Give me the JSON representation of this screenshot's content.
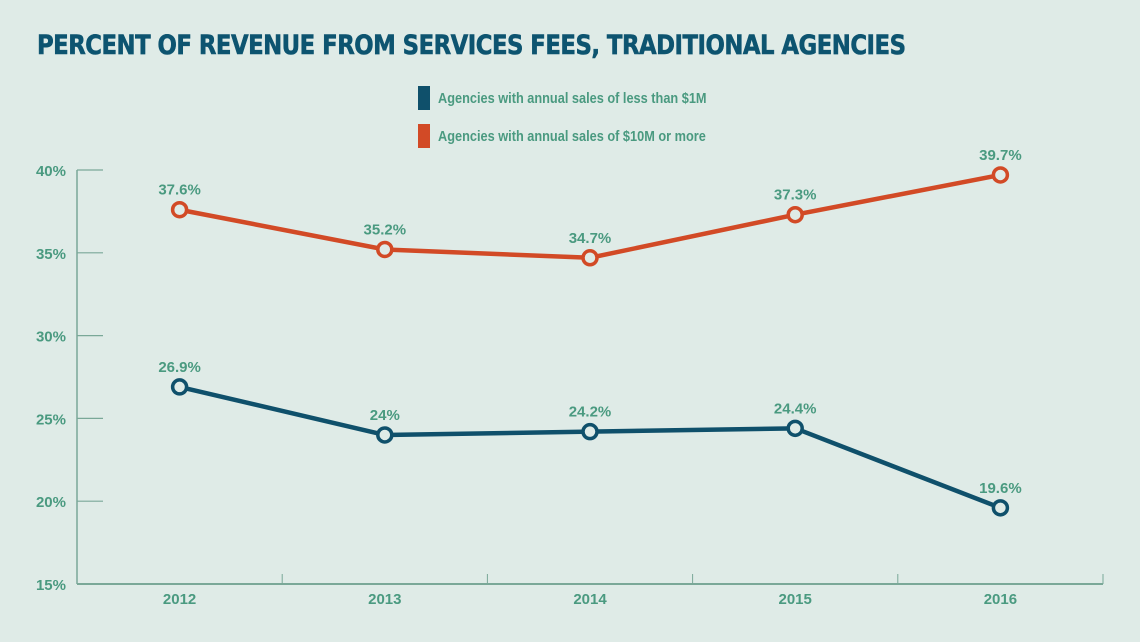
{
  "chart_data": {
    "type": "line",
    "title": "PERCENT OF REVENUE FROM SERVICES FEES, TRADITIONAL AGENCIES",
    "xlabel": "",
    "ylabel": "",
    "categories": [
      "2012",
      "2013",
      "2014",
      "2015",
      "2016"
    ],
    "ylim": [
      15,
      40
    ],
    "yticks": [
      15,
      20,
      25,
      30,
      35,
      40
    ],
    "ytick_labels": [
      "15%",
      "20%",
      "25%",
      "30%",
      "35%",
      "40%"
    ],
    "grid": false,
    "legend_position": "top-center",
    "series": [
      {
        "name": "Agencies with annual sales of less than $1M",
        "color": "#0f506b",
        "values": [
          26.9,
          24.0,
          24.2,
          24.4,
          19.6
        ],
        "labels": [
          "26.9%",
          "24%",
          "24.2%",
          "24.4%",
          "19.6%"
        ]
      },
      {
        "name": "Agencies with annual sales of $10M or more",
        "color": "#d24a26",
        "values": [
          37.6,
          35.2,
          34.7,
          37.3,
          39.7
        ],
        "labels": [
          "37.6%",
          "35.2%",
          "34.7%",
          "37.3%",
          "39.7%"
        ]
      }
    ]
  },
  "colors": {
    "background": "#dfebe7",
    "title": "#0d5470",
    "text": "#4a9a80",
    "axis": "#7aa898"
  }
}
